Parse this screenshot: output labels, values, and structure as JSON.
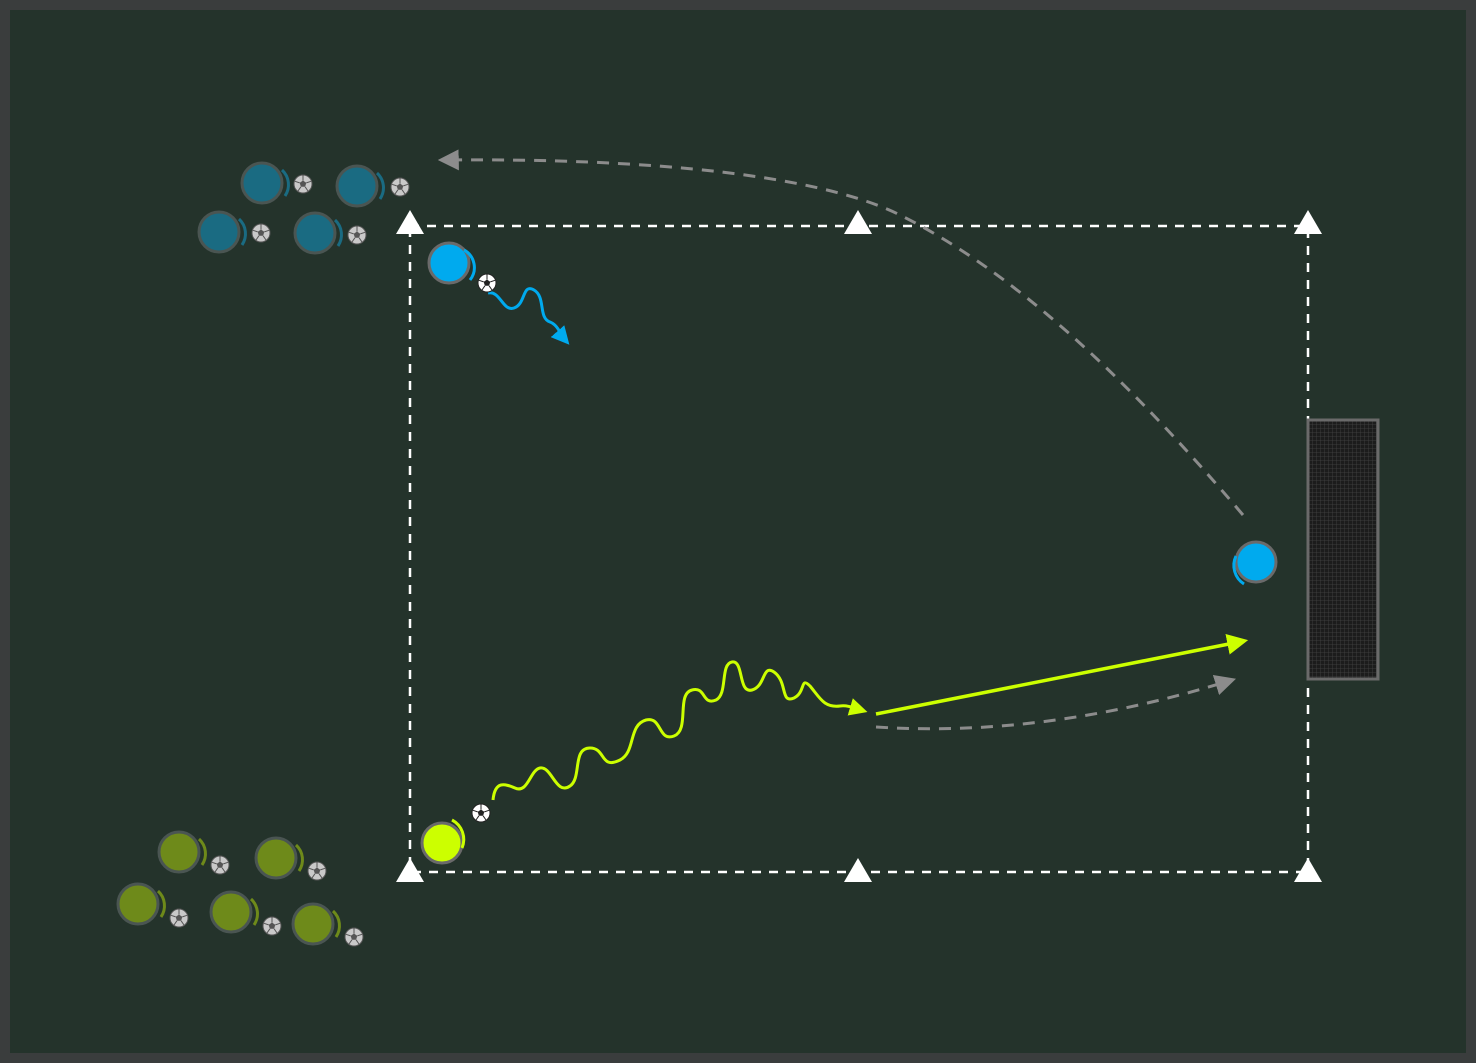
{
  "diagram": {
    "colors": {
      "border": "#3a3d3d",
      "pitch": "#24332b",
      "boundary_line": "#ffffff",
      "cone": "#ffffff",
      "blue_team": "#00aaee",
      "blue_team_waiting": "#1a6b82",
      "green_team": "#ccff00",
      "green_team_waiting": "#6e8a1a",
      "run_path": "#8c8c8c",
      "goal_frame": "#6a6a6a",
      "goal_net": "#2b2b2b"
    },
    "icons": {
      "cone": "triangle-cone-icon",
      "ball": "soccer-ball-icon",
      "player": "player-token-icon",
      "goal": "goal-net-icon"
    }
  }
}
